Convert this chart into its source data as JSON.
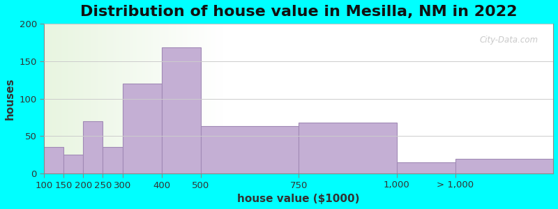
{
  "title": "Distribution of house value in Mesilla, NM in 2022",
  "xlabel": "house value ($1000)",
  "ylabel": "houses",
  "background_color": "#00FFFF",
  "bar_color": "#c4afd4",
  "bar_edge_color": "#a08ab5",
  "ylim": [
    0,
    200
  ],
  "yticks": [
    0,
    50,
    100,
    150,
    200
  ],
  "bin_left_edges": [
    100,
    150,
    200,
    250,
    300,
    400,
    500,
    750,
    1000,
    1150
  ],
  "bin_right_edges": [
    150,
    200,
    250,
    300,
    400,
    500,
    750,
    1000,
    1150,
    1400
  ],
  "bar_heights": [
    35,
    25,
    70,
    35,
    120,
    168,
    63,
    68,
    15,
    20
  ],
  "xtick_positions": [
    100,
    150,
    200,
    250,
    300,
    400,
    500,
    750,
    1000,
    1150
  ],
  "xtick_labels": [
    "100",
    "150",
    "200",
    "250",
    "300",
    "400",
    "500",
    "750",
    "1,000",
    "> 1,000"
  ],
  "xlim": [
    100,
    1400
  ],
  "title_fontsize": 16,
  "axis_label_fontsize": 11,
  "tick_fontsize": 9.5,
  "watermark_text": "City-Data.com"
}
